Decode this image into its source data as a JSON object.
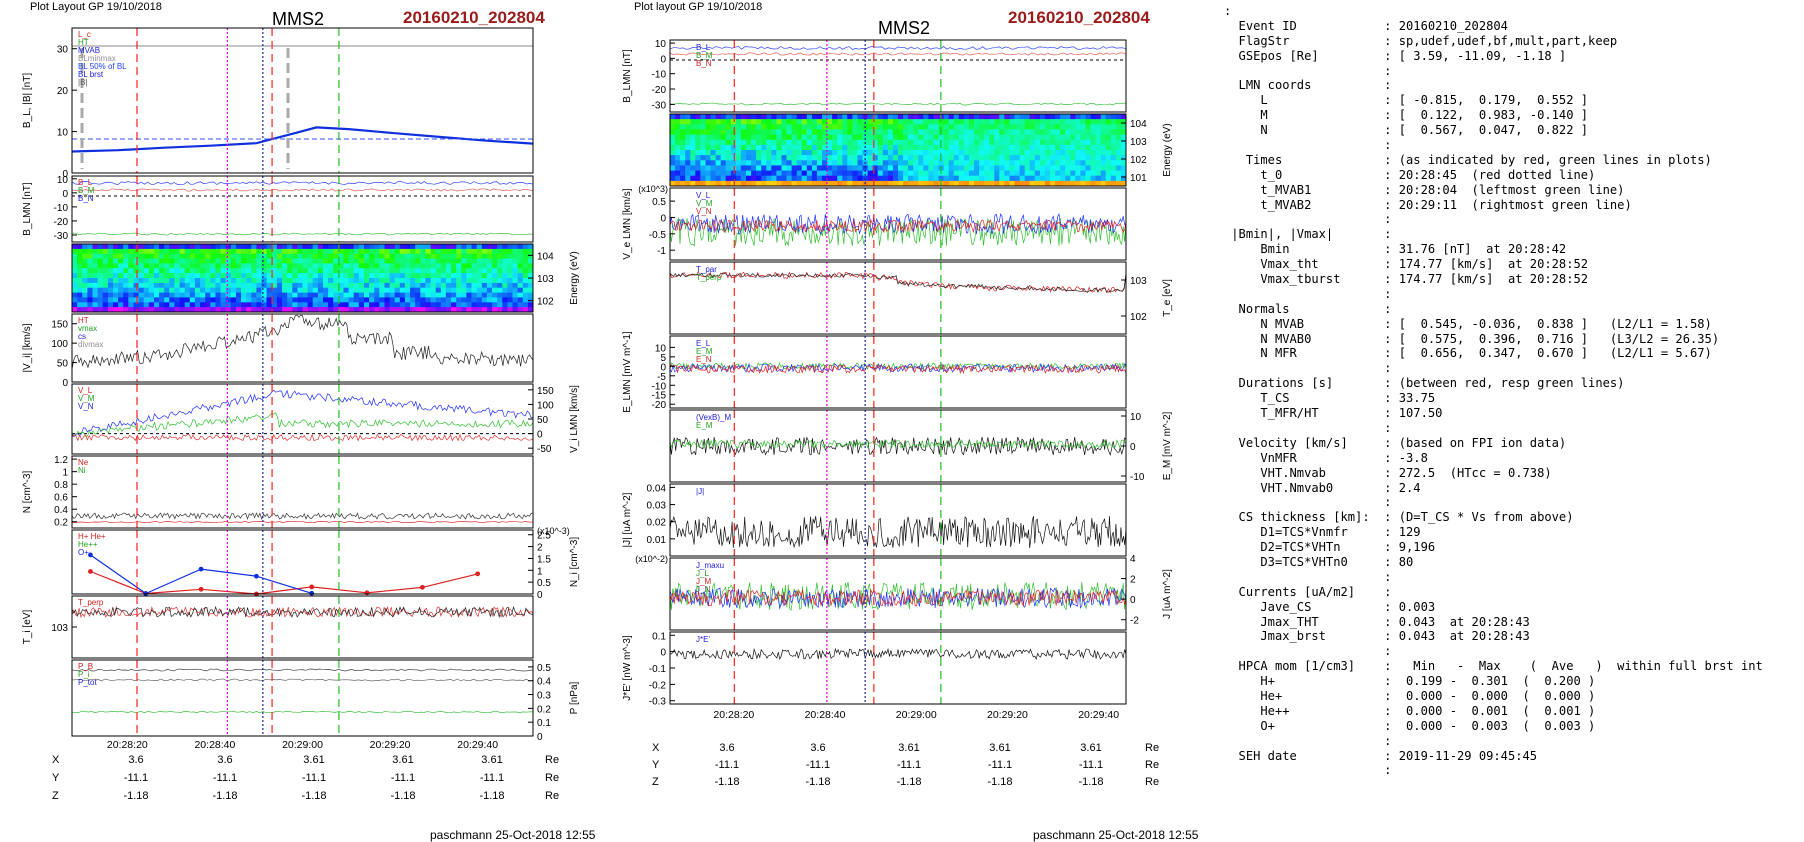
{
  "header": {
    "left_layout": "Plot Layout GP 19/10/2018",
    "right_layout": "Plot layout GP 19/10/2018",
    "spacecraft": "MMS2",
    "event_id": "20160210_202804",
    "footer": "paschmann 25-Oct-2018 12:55"
  },
  "colors": {
    "event_id": "#9b1b1b",
    "red_line": "#ff2020",
    "green_line": "#20c020",
    "magenta_line": "#e000e0",
    "blue_line": "#2020ff"
  },
  "coords": {
    "rows": [
      {
        "label": "X",
        "values": [
          "3.6",
          "3.6",
          "3.61",
          "3.61",
          "3.61"
        ],
        "unit": "Re"
      },
      {
        "label": "Y",
        "values": [
          "-11.1",
          "-11.1",
          "-11.1",
          "-11.1",
          "-11.1"
        ],
        "unit": "Re"
      },
      {
        "label": "Z",
        "values": [
          "-1.18",
          "-1.18",
          "-1.18",
          "-1.18",
          "-1.18"
        ],
        "unit": "Re"
      }
    ]
  },
  "chart_data": [
    {
      "type": "line",
      "figure": "left",
      "panels": [
        {
          "id": "b",
          "ylabel": "B_L, |B| [nT]",
          "ylim": [
            0,
            35
          ],
          "yticks": [
            0,
            10,
            20,
            30
          ],
          "legend": [
            "L_c",
            "HT",
            "MVAB",
            "BLminmax",
            "BL 50% of BL",
            "BL brst",
            "|B|"
          ],
          "series": [
            {
              "name": "BL brst",
              "x": [
                0,
                10,
                20,
                30,
                40,
                48,
                53,
                60,
                70,
                80,
                90,
                100
              ],
              "values": [
                5.2,
                5.5,
                6.1,
                6.6,
                7.2,
                9.5,
                11,
                10.6,
                9.6,
                8.7,
                7.8,
                7.1
              ]
            }
          ]
        },
        {
          "id": "blmn",
          "ylabel": "B_LMN [nT]",
          "ylim": [
            -35,
            12
          ],
          "yticks": [
            -30,
            -20,
            -10,
            0,
            10
          ],
          "legend": [
            "B_L",
            "B_M",
            "B_N"
          ]
        },
        {
          "id": "spec",
          "ylabel": "Energy (eV)",
          "yticks": [
            "10^2",
            "10^3",
            "10^4"
          ]
        },
        {
          "id": "vi",
          "ylabel": "|V_i| [km/s]",
          "ylim": [
            0,
            175
          ],
          "yticks": [
            0,
            50,
            100,
            150
          ],
          "legend": [
            "HT",
            "vmax",
            "cs",
            "divmax"
          ],
          "series": [
            {
              "name": "|Vi|",
              "x": [
                0,
                10,
                20,
                30,
                40,
                50,
                55,
                60,
                70,
                80,
                90,
                100
              ],
              "values": [
                50,
                60,
                70,
                95,
                120,
                160,
                150,
                110,
                75,
                60,
                55,
                50
              ]
            }
          ]
        },
        {
          "id": "vilmn",
          "ylabel": "V_i LMN [km/s]",
          "ylim": [
            -70,
            170
          ],
          "yticks": [
            -50,
            0,
            50,
            100,
            150
          ],
          "legend": [
            "V_L",
            "V_M",
            "V_N"
          ]
        },
        {
          "id": "n",
          "ylabel": "N [cm^-3]",
          "ylim": [
            0.1,
            1.25
          ],
          "yticks": [
            0.2,
            0.4,
            0.6,
            0.8,
            1.0,
            1.2
          ],
          "legend": [
            "Ne",
            "Ni"
          ]
        },
        {
          "id": "hpca",
          "ylabel": "N_i [cm^-3]",
          "yunit": "(x10^-3)",
          "ylim": [
            0,
            2.7
          ],
          "yticks": [
            0.0,
            0.5,
            1.0,
            1.5,
            2.0,
            2.5
          ],
          "legend": [
            "H+ He+",
            "He++",
            "O+"
          ],
          "series": [
            {
              "name": "He++",
              "x": [
                4,
                16,
                28,
                40,
                52,
                64,
                76,
                88
              ],
              "values": [
                0.95,
                0.02,
                0.2,
                0.0,
                0.3,
                0.05,
                0.28,
                0.85
              ]
            },
            {
              "name": "O+",
              "x": [
                4,
                16,
                28,
                40,
                52
              ],
              "values": [
                1.65,
                0.02,
                1.05,
                0.75,
                0.03
              ]
            }
          ]
        },
        {
          "id": "ti",
          "ylabel": "T_i [eV]",
          "yticks": [
            "10^3"
          ],
          "legend": [
            "T_perp"
          ]
        },
        {
          "id": "p",
          "ylabel": "P [nPa]",
          "ylim": [
            0,
            0.55
          ],
          "yticks": [
            0.0,
            0.1,
            0.2,
            0.3,
            0.4,
            0.5
          ],
          "legend": [
            "P_B",
            "P_i",
            "P_tot"
          ]
        }
      ],
      "xticks": [
        "20:28:20",
        "20:28:40",
        "20:29:00",
        "20:29:20",
        "20:29:40"
      ]
    },
    {
      "type": "line",
      "figure": "right",
      "panels": [
        {
          "id": "blmn",
          "ylabel": "B_LMN [nT]",
          "ylim": [
            -35,
            12
          ],
          "yticks": [
            -30,
            -20,
            -10,
            0,
            10
          ],
          "legend": [
            "B_L",
            "B_M",
            "B_N"
          ]
        },
        {
          "id": "spec",
          "ylabel": "Energy (eV)",
          "yticks": [
            "10^1",
            "10^2",
            "10^3",
            "10^4"
          ]
        },
        {
          "id": "ve",
          "ylabel": "V_e LMN [km/s]",
          "yunit": "(x10^3)",
          "ylim": [
            -1.3,
            0.9
          ],
          "yticks": [
            -1.0,
            -0.5,
            0.0,
            0.5
          ],
          "legend": [
            "V_L",
            "V_M",
            "V_N"
          ]
        },
        {
          "id": "te",
          "ylabel": "T_e [eV]",
          "yticks": [
            "10^2",
            "10^3"
          ],
          "legend": [
            "T_par",
            "T_perp"
          ],
          "series": [
            {
              "name": "T_par",
              "x": [
                0,
                20,
                40,
                45,
                50,
                55,
                60,
                70,
                80,
                90,
                100
              ],
              "values": [
                1100,
                1050,
                1000,
                800,
                400,
                330,
                280,
                220,
                190,
                170,
                150
              ]
            }
          ]
        },
        {
          "id": "e",
          "ylabel": "E_LMN [mV m^-1]",
          "ylim": [
            -22,
            16
          ],
          "yticks": [
            -20,
            -15,
            -10,
            -5,
            0,
            5,
            10
          ],
          "legend": [
            "E_L",
            "E_M",
            "E_N"
          ]
        },
        {
          "id": "em",
          "ylabel": "E_M [mV m^-2]",
          "ylim": [
            -12,
            12
          ],
          "yticks": [
            -10,
            0,
            10
          ],
          "legend": [
            "(VexB)_M",
            "E_M"
          ]
        },
        {
          "id": "j",
          "ylabel": "|J| [uA m^-2]",
          "ylim": [
            0,
            0.042
          ],
          "yticks": [
            0.01,
            0.02,
            0.03,
            0.04
          ],
          "legend": [
            "|J|"
          ]
        },
        {
          "id": "jlmn",
          "ylabel": "J [uA m^-2]",
          "yunit": "(x10^-2)",
          "ylim": [
            -3,
            4
          ],
          "yticks": [
            -2,
            0,
            2,
            4
          ],
          "legend": [
            "J_maxu",
            "J_L",
            "J_M",
            "J_N"
          ]
        },
        {
          "id": "je",
          "ylabel": "J*E' [nW m^-3]",
          "ylim": [
            -0.32,
            0.12
          ],
          "yticks": [
            -0.3,
            -0.2,
            -0.1,
            0.0,
            0.1
          ],
          "legend": [
            "J*E'"
          ]
        }
      ],
      "xticks": [
        "20:28:20",
        "20:28:40",
        "20:29:00",
        "20:29:20",
        "20:29:40"
      ]
    }
  ],
  "info": {
    "lines": [
      ":",
      "  Event ID            : 20160210_202804",
      "  FlagStr             : sp,udef,udef,bf,mult,part,keep",
      "  GSEpos [Re]         : [ 3.59, -11.09, -1.18 ]",
      "                      :",
      "  LMN coords          :",
      "     L                : [ -0.815,  0.179,  0.552 ]",
      "     M                : [  0.122,  0.983, -0.140 ]",
      "     N                : [  0.567,  0.047,  0.822 ]",
      "                      :",
      "   Times              : (as indicated by red, green lines in plots)",
      "     t_0              : 20:28:45  (red dotted line)",
      "     t_MVAB1          : 20:28:04  (leftmost green line)",
      "     t_MVAB2          : 20:29:11  (rightmost green line)",
      "                      :",
      " |Bmin|, |Vmax|       :",
      "     Bmin             : 31.76 [nT]  at 20:28:42",
      "     Vmax_tht         : 174.77 [km/s]  at 20:28:52",
      "     Vmax_tburst      : 174.77 [km/s]  at 20:28:52",
      "                      :",
      "  Normals             :",
      "     N MVAB           : [  0.545, -0.036,  0.838 ]   (L2/L1 = 1.58)",
      "     N MVAB0          : [  0.575,  0.396,  0.716 ]   (L3/L2 = 26.35)",
      "     N MFR            : [  0.656,  0.347,  0.670 ]   (L2/L1 = 5.67)",
      "                      :",
      "  Durations [s]       : (between red, resp green lines)",
      "     T_CS             : 33.75",
      "     T_MFR/HT         : 107.50",
      "                      :",
      "  Velocity [km/s]     : (based on FPI ion data)",
      "     VnMFR            : -3.8",
      "     VHT.Nmvab        : 272.5  (HTcc = 0.738)",
      "     VHT.Nmvab0       : 2.4",
      "                      :",
      "  CS thickness [km]:  : (D=T_CS * Vs from above)",
      "     D1=TCS*Vnmfr     : 129",
      "     D2=TCS*VHTn      : 9,196",
      "     D3=TCS*VHTn0     : 80",
      "                      :",
      "  Currents [uA/m2]    :",
      "     Jave_CS          : 0.003",
      "     Jmax_THT         : 0.043  at 20:28:43",
      "     Jmax_brst        : 0.043  at 20:28:43",
      "                      :",
      "  HPCA mom [1/cm3]    :   Min   -  Max    (  Ave   )  within full brst int",
      "     H+               :  0.199 -  0.301  (  0.200 )",
      "     He+              :  0.000 -  0.000  (  0.000 )",
      "     He++             :  0.000 -  0.001  (  0.001 )",
      "     O+               :  0.000 -  0.003  (  0.003 )",
      "                      :",
      "  SEH date            : 2019-11-29 09:45:45",
      "                      :"
    ]
  }
}
